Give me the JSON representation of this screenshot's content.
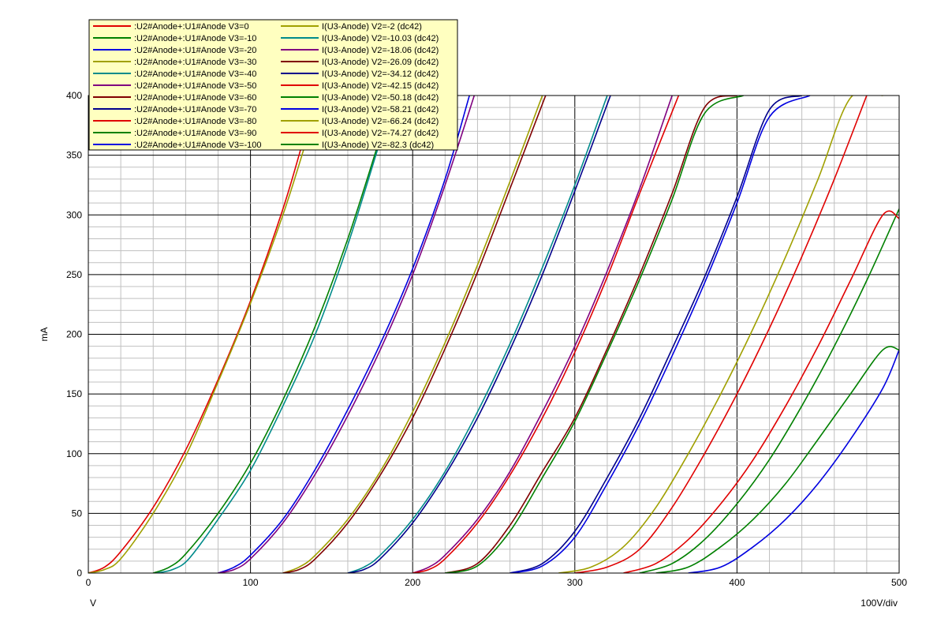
{
  "chart_data": {
    "type": "line",
    "title": "",
    "xlabel": "V",
    "ylabel": "mA",
    "x_scale_note": "100V/div",
    "xlim": [
      0,
      500
    ],
    "ylim": [
      0,
      400
    ],
    "x_ticks": [
      "0",
      "100",
      "200",
      "300",
      "400",
      "500"
    ],
    "y_ticks": [
      "0",
      "50",
      "100",
      "150",
      "200",
      "250",
      "300",
      "350",
      "400"
    ],
    "grid": true,
    "legend_position": "top-left",
    "colors": {
      "background": "#ffffff",
      "legend_bg": "#ffffc0",
      "major_grid": "#000000",
      "minor_grid": "#c0c0c0"
    },
    "series": [
      {
        "name": ":U2#Anode+:U1#Anode V3=0",
        "color": "#e00000",
        "x": [
          0,
          10,
          20,
          40,
          60,
          80,
          100,
          120,
          132
        ],
        "values": [
          0,
          5,
          18,
          55,
          103,
          162,
          228,
          305,
          360
        ]
      },
      {
        "name": ":U2#Anode+:U1#Anode V3=-10",
        "color": "#008000",
        "x": [
          40,
          50,
          60,
          80,
          100,
          120,
          140,
          160,
          180
        ],
        "values": [
          0,
          5,
          16,
          50,
          92,
          145,
          207,
          280,
          365
        ]
      },
      {
        "name": ":U2#Anode+:U1#Anode V3=-20",
        "color": "#0000e0",
        "x": [
          80,
          90,
          100,
          120,
          140,
          160,
          180,
          200,
          220,
          235
        ],
        "values": [
          0,
          5,
          15,
          45,
          87,
          137,
          192,
          255,
          330,
          400
        ]
      },
      {
        "name": ":U2#Anode+:U1#Anode V3=-30",
        "color": "#a0a000",
        "x": [
          120,
          130,
          140,
          160,
          180,
          200,
          220,
          240,
          260,
          280
        ],
        "values": [
          0,
          5,
          15,
          45,
          85,
          135,
          193,
          258,
          328,
          400
        ]
      },
      {
        "name": ":U2#Anode+:U1#Anode V3=-40",
        "color": "#008b8b",
        "x": [
          160,
          170,
          180,
          200,
          220,
          240,
          260,
          280,
          300,
          320
        ],
        "values": [
          0,
          5,
          15,
          45,
          85,
          135,
          192,
          256,
          325,
          400
        ]
      },
      {
        "name": ":U2#Anode+:U1#Anode V3=-50",
        "color": "#800080",
        "x": [
          200,
          210,
          220,
          240,
          260,
          280,
          300,
          320,
          340,
          360
        ],
        "values": [
          0,
          5,
          15,
          45,
          85,
          135,
          190,
          253,
          322,
          400
        ]
      },
      {
        "name": ":U2#Anode+:U1#Anode V3=-60",
        "color": "#800000",
        "x": [
          220,
          240,
          260,
          280,
          300,
          320,
          340,
          360,
          380,
          400
        ],
        "values": [
          0,
          8,
          40,
          85,
          130,
          188,
          250,
          318,
          390,
          400
        ]
      },
      {
        "name": ":U2#Anode+:U1#Anode V3=-70",
        "color": "#00008b",
        "x": [
          260,
          280,
          300,
          320,
          340,
          360,
          380,
          400,
          420,
          440
        ],
        "values": [
          0,
          8,
          35,
          80,
          130,
          188,
          248,
          315,
          388,
          400
        ]
      },
      {
        "name": ":U2#Anode+:U1#Anode V3=-80",
        "color": "#e00000",
        "x": [
          300,
          320,
          340,
          360,
          380,
          400,
          420,
          440,
          460,
          480
        ],
        "values": [
          0,
          5,
          20,
          55,
          100,
          150,
          205,
          265,
          330,
          400
        ]
      },
      {
        "name": ":U2#Anode+:U1#Anode V3=-90",
        "color": "#008000",
        "x": [
          340,
          360,
          380,
          400,
          420,
          440,
          460,
          480,
          500
        ],
        "values": [
          0,
          8,
          28,
          58,
          95,
          140,
          190,
          245,
          305
        ]
      },
      {
        "name": ":U2#Anode+:U1#Anode V3=-100",
        "color": "#0000e0",
        "x": [
          370,
          390,
          410,
          430,
          450,
          470,
          490,
          500
        ],
        "values": [
          0,
          5,
          22,
          45,
          75,
          112,
          155,
          187
        ]
      },
      {
        "name": "I(U3-Anode) V2=-2 (dc42)",
        "color": "#a0a000",
        "x": [
          0,
          10,
          20,
          40,
          60,
          80,
          100,
          120,
          134
        ],
        "values": [
          0,
          3,
          12,
          50,
          98,
          160,
          226,
          300,
          360
        ]
      },
      {
        "name": "I(U3-Anode) V2=-10.03 (dc42)",
        "color": "#008b8b",
        "x": [
          42,
          52,
          62,
          80,
          100,
          120,
          140,
          160,
          180
        ],
        "values": [
          0,
          3,
          12,
          45,
          86,
          140,
          200,
          275,
          362
        ]
      },
      {
        "name": "I(U3-Anode) V2=-18.06 (dc42)",
        "color": "#800080",
        "x": [
          80,
          90,
          100,
          120,
          140,
          160,
          180,
          200,
          220,
          238
        ],
        "values": [
          0,
          3,
          12,
          42,
          83,
          132,
          187,
          250,
          325,
          400
        ]
      },
      {
        "name": "I(U3-Anode) V2=-26.09 (dc42)",
        "color": "#800000",
        "x": [
          120,
          130,
          140,
          160,
          180,
          200,
          220,
          240,
          260,
          282
        ],
        "values": [
          0,
          3,
          12,
          42,
          82,
          130,
          188,
          252,
          322,
          400
        ]
      },
      {
        "name": "I(U3-Anode) V2=-34.12 (dc42)",
        "color": "#00008b",
        "x": [
          160,
          170,
          180,
          200,
          220,
          240,
          260,
          280,
          300,
          322
        ],
        "values": [
          0,
          3,
          12,
          42,
          82,
          130,
          187,
          250,
          320,
          400
        ]
      },
      {
        "name": "I(U3-Anode) V2=-42.15 (dc42)",
        "color": "#e00000",
        "x": [
          200,
          210,
          220,
          240,
          260,
          280,
          300,
          320,
          340,
          364
        ],
        "values": [
          0,
          3,
          12,
          42,
          82,
          130,
          185,
          248,
          318,
          400
        ]
      },
      {
        "name": "I(U3-Anode) V2=-50.18 (dc42)",
        "color": "#008000",
        "x": [
          220,
          240,
          260,
          280,
          300,
          320,
          340,
          360,
          380,
          404
        ],
        "values": [
          0,
          6,
          35,
          80,
          127,
          185,
          246,
          313,
          385,
          400
        ]
      },
      {
        "name": "I(U3-Anode) V2=-58.21 (dc42)",
        "color": "#0000e0",
        "x": [
          260,
          280,
          300,
          320,
          340,
          360,
          380,
          400,
          420,
          445
        ],
        "values": [
          0,
          6,
          30,
          75,
          125,
          182,
          243,
          310,
          382,
          400
        ]
      },
      {
        "name": "I(U3-Anode) V2=-66.24 (dc42)",
        "color": "#a0a000",
        "x": [
          290,
          310,
          330,
          350,
          370,
          390,
          410,
          430,
          450,
          470,
          490
        ],
        "values": [
          0,
          5,
          22,
          55,
          100,
          150,
          205,
          265,
          330,
          398,
          400
        ]
      },
      {
        "name": "I(U3-Anode) V2=-74.27 (dc42)",
        "color": "#e00000",
        "x": [
          330,
          350,
          370,
          390,
          410,
          430,
          450,
          470,
          490,
          500
        ],
        "values": [
          0,
          8,
          28,
          58,
          95,
          140,
          190,
          245,
          300,
          297
        ]
      },
      {
        "name": "I(U3-Anode) V2=-82.3 (dc42)",
        "color": "#008000",
        "x": [
          350,
          370,
          390,
          410,
          430,
          450,
          470,
          490,
          500
        ],
        "values": [
          0,
          5,
          22,
          45,
          75,
          112,
          150,
          187,
          187
        ]
      }
    ]
  }
}
